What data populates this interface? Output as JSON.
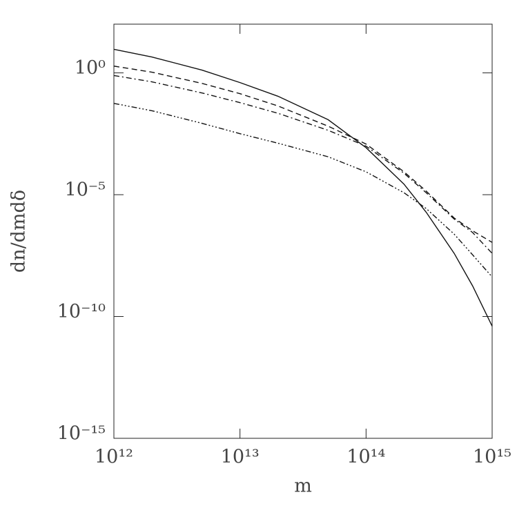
{
  "chart_data": {
    "type": "line",
    "x_label": "m",
    "y_label": "dn/dmdδ",
    "xlog": true,
    "ylog": true,
    "xlim": [
      1000000000000.0,
      1000000000000000.0
    ],
    "ylim": [
      1e-15,
      100.0
    ],
    "xticks": [
      {
        "value": 1000000000000.0,
        "label": "10¹²"
      },
      {
        "value": 10000000000000.0,
        "label": "10¹³"
      },
      {
        "value": 100000000000000.0,
        "label": "10¹⁴"
      },
      {
        "value": 1000000000000000.0,
        "label": "10¹⁵"
      }
    ],
    "yticks": [
      {
        "value": 1e-15,
        "label": "10⁻¹⁵"
      },
      {
        "value": 1e-10,
        "label": "10⁻¹⁰"
      },
      {
        "value": 1e-05,
        "label": "10⁻⁵"
      },
      {
        "value": 1,
        "label": "10⁰"
      }
    ],
    "x": [
      1000000000000.0,
      2000000000000.0,
      5000000000000.0,
      10000000000000.0,
      20000000000000.0,
      50000000000000.0,
      100000000000000.0,
      200000000000000.0,
      300000000000000.0,
      500000000000000.0,
      700000000000000.0,
      1000000000000000.0
    ],
    "series": [
      {
        "color": "#111111",
        "linestyle": "solid",
        "values": [
          9.3,
          4.5,
          1.3,
          0.4,
          0.11,
          0.012,
          0.00085,
          2.7e-05,
          1.9e-06,
          3.9e-08,
          1.8e-09,
          4e-11
        ]
      },
      {
        "color": "#111111",
        "linestyle": "dashed",
        "values": [
          1.9,
          1.07,
          0.37,
          0.14,
          0.044,
          0.0065,
          0.0012,
          8.7e-05,
          1.4e-05,
          1.1e-06,
          3.3e-07,
          1.1e-07
        ]
      },
      {
        "color": "#111111",
        "linestyle": "dashdot",
        "values": [
          0.78,
          0.43,
          0.15,
          0.06,
          0.022,
          0.0044,
          0.00098,
          7.6e-05,
          1.2e-05,
          1e-06,
          2.8e-07,
          3.9e-08
        ]
      },
      {
        "color": "#111111",
        "linestyle": "dashdotdotdot",
        "values": [
          0.056,
          0.028,
          0.0085,
          0.0032,
          0.0013,
          0.00036,
          8.7e-05,
          1.2e-05,
          2.7e-06,
          2.4e-07,
          3.4e-08,
          4.2e-09
        ]
      }
    ]
  }
}
